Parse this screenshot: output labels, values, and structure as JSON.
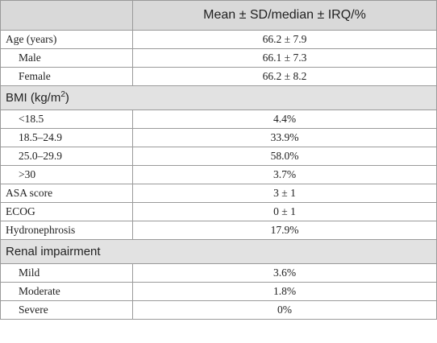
{
  "table": {
    "header": {
      "col1": "",
      "col2": "Mean ± SD/median ± IRQ/%"
    },
    "rows": [
      {
        "label": "Age (years)",
        "value": "66.2 ± 7.9"
      },
      {
        "label": "Male",
        "value": "66.1 ± 7.3"
      },
      {
        "label": "Female",
        "value": "66.2 ± 8.2"
      },
      {
        "section_pre": "BMI (kg/m",
        "section_sup": "2",
        "section_post": ")"
      },
      {
        "label": "<18.5",
        "value": "4.4%"
      },
      {
        "label": "18.5–24.9",
        "value": "33.9%"
      },
      {
        "label": "25.0–29.9",
        "value": "58.0%"
      },
      {
        "label": ">30",
        "value": "3.7%"
      },
      {
        "label": "ASA score",
        "value": "3 ± 1"
      },
      {
        "label": "ECOG",
        "value": "0 ± 1"
      },
      {
        "label": "Hydronephrosis",
        "value": "17.9%"
      },
      {
        "section": "Renal impairment"
      },
      {
        "label": "Mild",
        "value": "3.6%"
      },
      {
        "label": "Moderate",
        "value": "1.8%"
      },
      {
        "label": "Severe",
        "value": "0%"
      }
    ]
  }
}
